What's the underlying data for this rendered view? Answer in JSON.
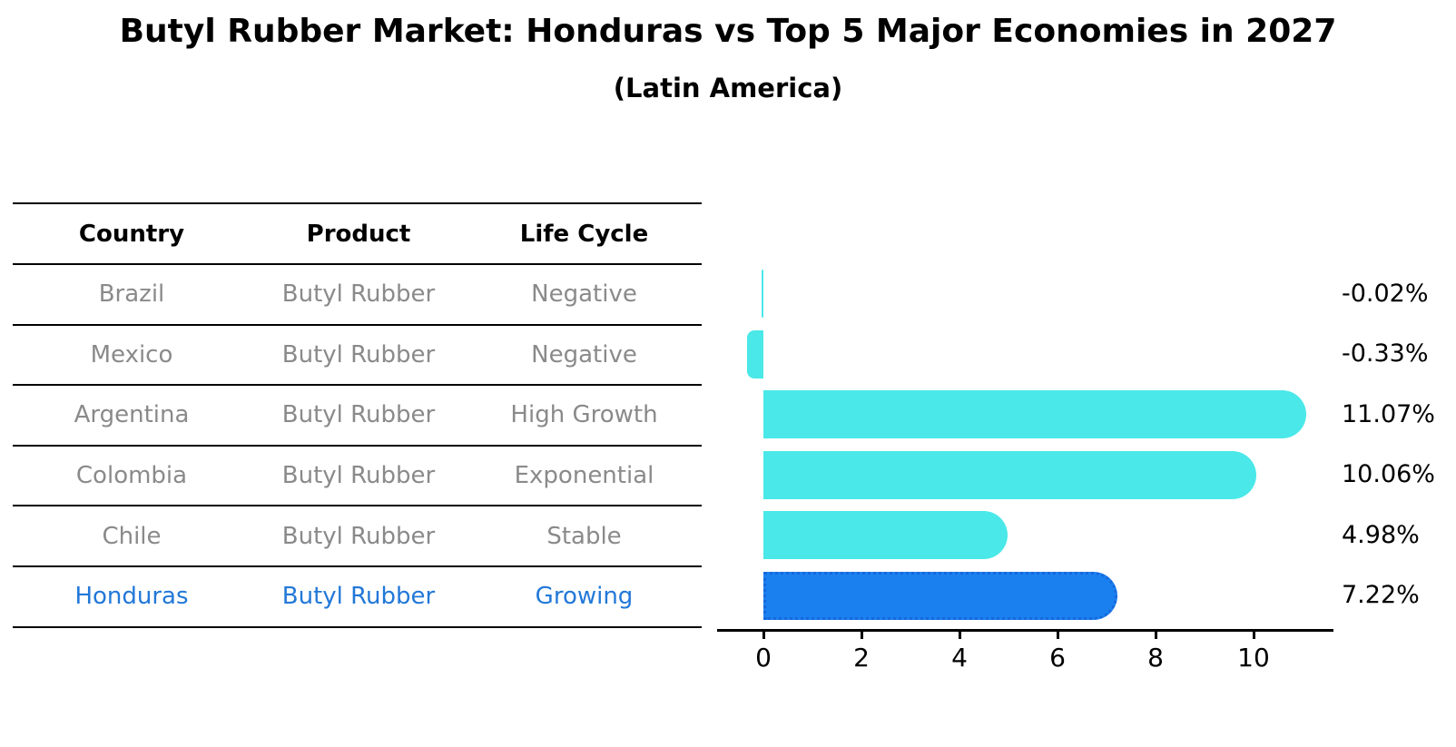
{
  "title": "Butyl Rubber Market: Honduras vs Top 5 Major Economies in 2027",
  "subtitle": "(Latin America)",
  "table": {
    "headers": [
      "Country",
      "Product",
      "Life Cycle"
    ],
    "rows": [
      {
        "country": "Brazil",
        "product": "Butyl Rubber",
        "life_cycle": "Negative",
        "highlight": false
      },
      {
        "country": "Mexico",
        "product": "Butyl Rubber",
        "life_cycle": "Negative",
        "highlight": false
      },
      {
        "country": "Argentina",
        "product": "Butyl Rubber",
        "life_cycle": "High Growth",
        "highlight": false
      },
      {
        "country": "Colombia",
        "product": "Butyl Rubber",
        "life_cycle": "Exponential",
        "highlight": false
      },
      {
        "country": "Chile",
        "product": "Butyl Rubber",
        "life_cycle": "Stable",
        "highlight": false
      },
      {
        "country": "Honduras",
        "product": "Butyl Rubber",
        "life_cycle": "Growing",
        "highlight": true
      }
    ]
  },
  "chart_data": {
    "type": "bar",
    "orientation": "horizontal",
    "title": "Butyl Rubber Market: Honduras vs Top 5 Major Economies in 2027 (Latin America)",
    "categories": [
      "Brazil",
      "Mexico",
      "Argentina",
      "Colombia",
      "Chile",
      "Honduras"
    ],
    "values": [
      -0.02,
      -0.33,
      11.07,
      10.06,
      4.98,
      7.22
    ],
    "value_labels": [
      "-0.02%",
      "-0.33%",
      "11.07%",
      "10.06%",
      "4.98%",
      "7.22%"
    ],
    "unit": "percent",
    "x_ticks": [
      0,
      2,
      4,
      6,
      8,
      10
    ],
    "xlim": [
      -0.95,
      11.63
    ],
    "grid": false,
    "legend": "none",
    "highlight_index": 5,
    "colors": {
      "bar": "#4ae8e8",
      "highlight_bar": "#1a80f0",
      "highlight_border": "#1668dc",
      "highlight_text": "#2278d8",
      "table_text": "#8a8a8a",
      "axis": "#000000"
    }
  }
}
